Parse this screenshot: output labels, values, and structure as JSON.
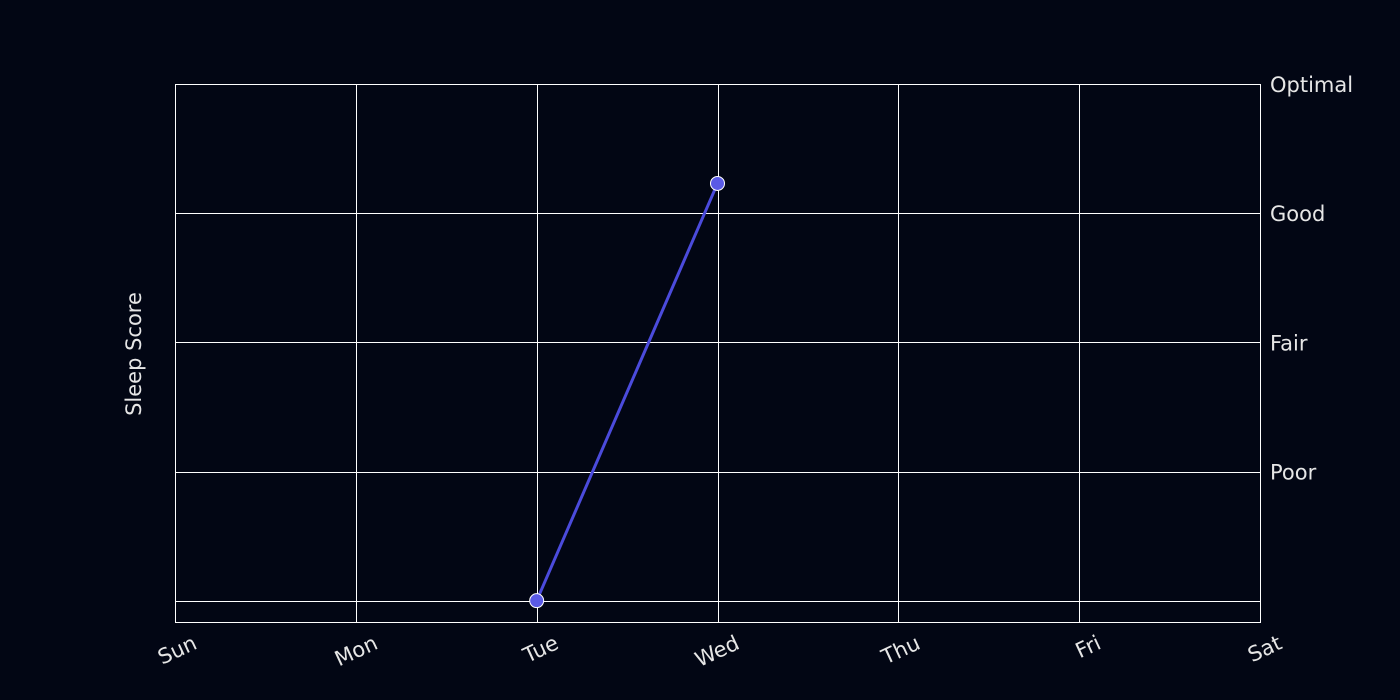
{
  "chart_data": {
    "type": "line",
    "title": "",
    "xlabel": "",
    "ylabel": "Sleep Score",
    "x_categories": [
      "Sun",
      "Mon",
      "Tue",
      "Wed",
      "Thu",
      "Fri",
      "Sat"
    ],
    "y_ticks": [
      {
        "value": 20,
        "label": ""
      },
      {
        "value": 40,
        "label": "Poor"
      },
      {
        "value": 60,
        "label": "Fair"
      },
      {
        "value": 80,
        "label": "Good"
      },
      {
        "value": 100,
        "label": "Optimal"
      }
    ],
    "ylim": [
      16.7,
      100
    ],
    "y_axis_side": "right",
    "grid": true,
    "legend": "none",
    "series": [
      {
        "color": "#4b4bdc",
        "points": [
          {
            "x": "Tue",
            "y": 20
          },
          {
            "x": "Wed",
            "y": 84.6
          }
        ]
      }
    ]
  },
  "colors": {
    "background": "#020614",
    "grid": "#ffffff",
    "text": "#e6e6e6",
    "line": "#4b4bdc",
    "marker_fill": "#5a5ae6",
    "marker_edge": "#ffffff"
  }
}
